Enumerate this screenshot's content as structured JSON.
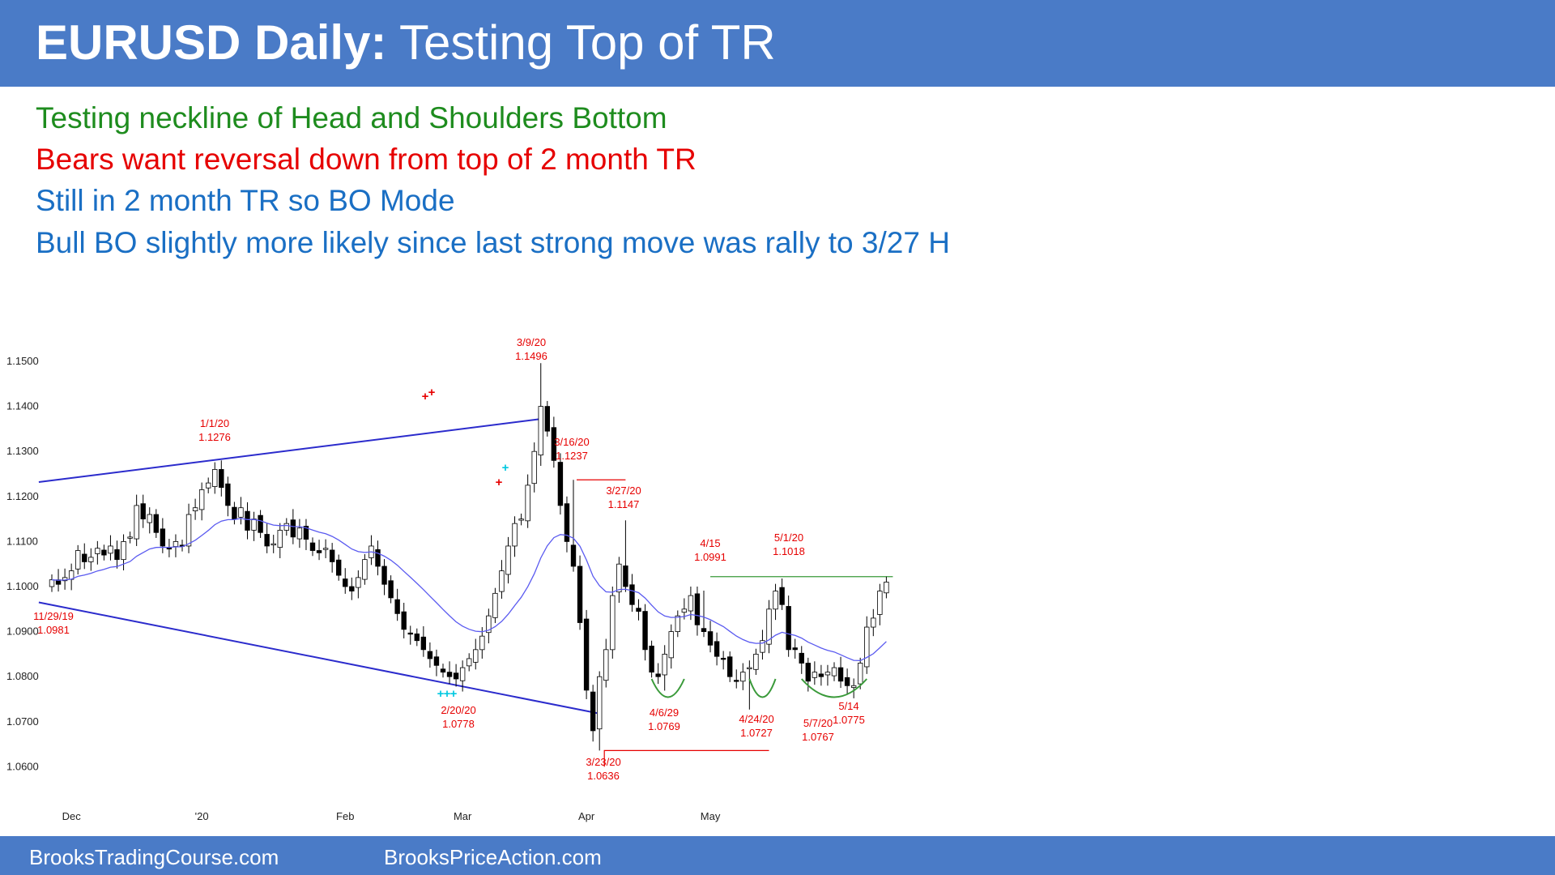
{
  "header": {
    "title_bold": "EURUSD Daily:",
    "title_rest": " Testing Top of TR"
  },
  "bullets": [
    {
      "text": "Testing neckline of Head and Shoulders Bottom",
      "color": "#1e8c1e"
    },
    {
      "text": "Bears want reversal down from top of 2 month TR",
      "color": "#e60000"
    },
    {
      "text": "Still in 2 month TR so BO Mode",
      "color": "#1a6fc4"
    },
    {
      "text": "Bull BO slightly more likely since last strong move was rally to 3/27 H",
      "color": "#1a6fc4"
    }
  ],
  "footer": {
    "left": "BrooksTradingCourse.com",
    "right": "BrooksPriceAction.com"
  },
  "colors": {
    "header_bg": "#4a7bc7",
    "channel_line": "#2b2bcc",
    "ema_line": "#5a5af0",
    "annotation": "#e60000",
    "neckline": "#3a9a3a",
    "cyan_marker": "#00c8e0"
  },
  "chart_data": {
    "type": "candlestick",
    "title": "",
    "xlabel": "",
    "ylabel": "",
    "ylim": [
      1.055,
      1.1535
    ],
    "y_ticks": [
      "1.1500",
      "1.1400",
      "1.1300",
      "1.1200",
      "1.1100",
      "1.1000",
      "1.0900",
      "1.0800",
      "1.0700",
      "1.0600"
    ],
    "y_tick_values": [
      1.15,
      1.14,
      1.13,
      1.12,
      1.11,
      1.1,
      1.09,
      1.08,
      1.07,
      1.06
    ],
    "x_ticks": [
      {
        "label": "Dec",
        "bar": 3
      },
      {
        "label": "'20",
        "bar": 23
      },
      {
        "label": "Feb",
        "bar": 45
      },
      {
        "label": "Mar",
        "bar": 63
      },
      {
        "label": "Apr",
        "bar": 82
      },
      {
        "label": "May",
        "bar": 101
      }
    ],
    "closes": [
      1.1015,
      1.1005,
      1.102,
      1.1035,
      1.108,
      1.1055,
      1.1065,
      1.1085,
      1.107,
      1.109,
      1.106,
      1.11,
      1.111,
      1.118,
      1.115,
      1.116,
      1.112,
      1.109,
      1.1085,
      1.11,
      1.109,
      1.116,
      1.1175,
      1.1215,
      1.123,
      1.126,
      1.122,
      1.118,
      1.115,
      1.1175,
      1.1125,
      1.115,
      1.112,
      1.109,
      1.1095,
      1.1125,
      1.114,
      1.111,
      1.113,
      1.1105,
      1.108,
      1.1075,
      1.1085,
      1.1055,
      1.1025,
      1.1,
      1.099,
      1.102,
      1.106,
      1.109,
      1.1045,
      1.1005,
      1.0975,
      1.094,
      1.0905,
      1.0895,
      1.088,
      1.086,
      1.084,
      1.0825,
      1.081,
      1.08,
      1.0795,
      1.082,
      1.084,
      1.086,
      1.089,
      1.0935,
      1.0985,
      1.1035,
      1.109,
      1.114,
      1.115,
      1.1225,
      1.13,
      1.14,
      1.1345,
      1.128,
      1.118,
      1.11,
      1.1045,
      1.092,
      1.077,
      1.068,
      1.08,
      1.086,
      1.098,
      1.105,
      1.1,
      1.096,
      1.0945,
      1.086,
      1.081,
      1.08,
      1.085,
      1.09,
      1.0935,
      1.095,
      1.098,
      1.0915,
      1.09,
      1.087,
      1.0845,
      1.084,
      1.08,
      1.079,
      1.081,
      1.082,
      1.085,
      1.088,
      1.095,
      1.099,
      1.096,
      1.086,
      1.086,
      1.083,
      1.079,
      1.081,
      1.08,
      1.081,
      1.082,
      1.079,
      1.078,
      1.078,
      1.083,
      1.091,
      1.093,
      1.099,
      1.101
    ],
    "key_levels": [
      {
        "date": "11/29/19",
        "price": "1.0981",
        "bar": 0
      },
      {
        "date": "1/1/20",
        "price": "1.1276",
        "bar": 25
      },
      {
        "date": "2/20/20",
        "price": "1.0778",
        "bar": 62
      },
      {
        "date": "3/9/20",
        "price": "1.1496",
        "bar": 75
      },
      {
        "date": "3/16/20",
        "price": "1.1237",
        "bar": 80
      },
      {
        "date": "3/23/20",
        "price": "1.0636",
        "bar": 84
      },
      {
        "date": "3/27/20",
        "price": "1.1147",
        "bar": 88
      },
      {
        "date": "4/6/29",
        "price": "1.0769",
        "bar": 94
      },
      {
        "date": "4/15",
        "price": "1.0991",
        "bar": 100
      },
      {
        "date": "4/24/20",
        "price": "1.0727",
        "bar": 107
      },
      {
        "date": "5/1/20",
        "price": "1.1018",
        "bar": 112
      },
      {
        "date": "5/7/20",
        "price": "1.0767",
        "bar": 116
      },
      {
        "date": "5/14",
        "price": "1.0775",
        "bar": 121
      }
    ]
  }
}
